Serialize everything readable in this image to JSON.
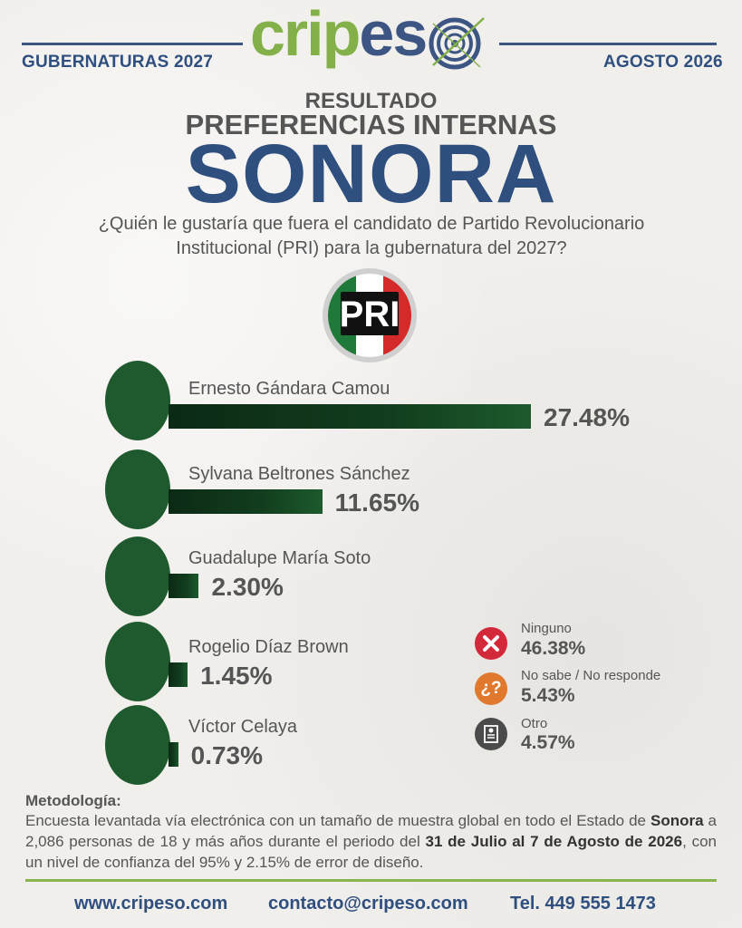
{
  "header": {
    "left": "GUBERNATURAS 2027",
    "right": "AGOSTO 2026",
    "logo_part1": "crip",
    "logo_part2": "es"
  },
  "titles": {
    "result": "RESULTADO",
    "preferences": "PREFERENCIAS INTERNAS",
    "state": "SONORA",
    "question_line1": "¿Quién le gustaría que fuera el candidato de Partido Revolucionario",
    "question_line2": "Institucional (PRI) para la gubernatura del 2027?"
  },
  "party": {
    "name": "PRI",
    "colors": [
      "#1f7a3a",
      "#ffffff",
      "#d42a2a"
    ]
  },
  "chart_data": {
    "type": "bar",
    "orientation": "horizontal",
    "categories": [
      "Ernesto Gándara Camou",
      "Sylvana Beltrones Sánchez",
      "Guadalupe María Soto",
      "Rogelio Díaz Brown",
      "Víctor Celaya"
    ],
    "values": [
      27.48,
      11.65,
      2.3,
      1.45,
      0.73
    ],
    "value_labels": [
      "27.48%",
      "11.65%",
      "2.30%",
      "1.45%",
      "0.73%"
    ],
    "unit": "%",
    "bar_color": "#123d1e"
  },
  "other_options": [
    {
      "icon": "x-icon",
      "label": "Ninguno",
      "value": "46.38%",
      "color": "#d3283a"
    },
    {
      "icon": "question-icon",
      "label": "No sabe / No responde",
      "value": "5.43%",
      "color": "#e0782e"
    },
    {
      "icon": "ballot-icon",
      "label": "Otro",
      "value": "4.57%",
      "color": "#4b4b4b"
    }
  ],
  "methodology": {
    "title": "Metodología:",
    "p1": "Encuesta levantada vía electrónica con un tamaño de muestra global en todo el Estado de ",
    "state": "Sonora",
    "p2": " a 2,086 personas de 18 y más años durante el periodo del ",
    "period": "31 de Julio al 7 de Agosto de 2026",
    "p3": ", con un nivel de confianza del 95% y 2.15% de error de diseño."
  },
  "footer": {
    "web": "www.cripeso.com",
    "email": "contacto@cripeso.com",
    "phone": "Tel. 449 555 1473"
  }
}
